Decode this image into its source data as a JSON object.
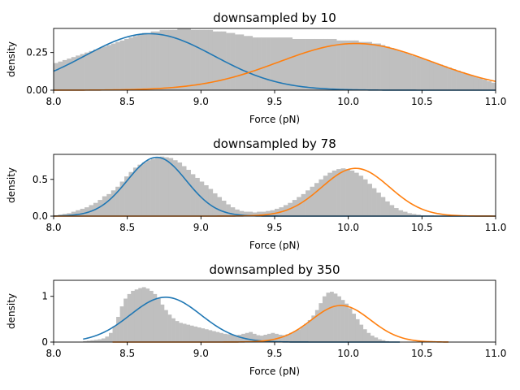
{
  "chart_data": [
    {
      "type": "bar",
      "title": "downsampled by 10",
      "xlabel": "Force (pN)",
      "ylabel": "density",
      "xlim": [
        8.0,
        11.0
      ],
      "ylim": [
        0,
        0.41
      ],
      "xticks": [
        "8.0",
        "8.5",
        "9.0",
        "9.5",
        "10.0",
        "10.5",
        "11.0"
      ],
      "yticks": [
        {
          "value": 0.0,
          "label": "0.00"
        },
        {
          "value": 0.25,
          "label": "0.25"
        }
      ],
      "histogram": {
        "color": "#bfbfbf",
        "bin_start": 8.0,
        "bin_width": 0.03,
        "values": [
          0.18,
          0.19,
          0.2,
          0.21,
          0.22,
          0.23,
          0.24,
          0.25,
          0.26,
          0.27,
          0.28,
          0.29,
          0.3,
          0.31,
          0.32,
          0.33,
          0.34,
          0.35,
          0.36,
          0.37,
          0.38,
          0.38,
          0.39,
          0.39,
          0.4,
          0.4,
          0.4,
          0.4,
          0.41,
          0.41,
          0.41,
          0.4,
          0.4,
          0.4,
          0.4,
          0.4,
          0.39,
          0.39,
          0.39,
          0.38,
          0.38,
          0.37,
          0.37,
          0.36,
          0.36,
          0.35,
          0.35,
          0.35,
          0.35,
          0.35,
          0.35,
          0.35,
          0.35,
          0.35,
          0.34,
          0.34,
          0.34,
          0.34,
          0.34,
          0.34,
          0.34,
          0.34,
          0.34,
          0.34,
          0.33,
          0.33,
          0.33,
          0.33,
          0.33,
          0.32,
          0.32,
          0.32,
          0.31,
          0.31,
          0.3,
          0.29,
          0.28,
          0.27,
          0.26,
          0.25,
          0.24,
          0.23,
          0.22,
          0.21,
          0.2,
          0.19,
          0.18,
          0.17,
          0.16,
          0.15,
          0.14,
          0.13,
          0.12,
          0.11,
          0.1,
          0.09,
          0.08,
          0.07,
          0.06,
          0.05
        ]
      },
      "series": [
        {
          "color": "#1f77b4",
          "mu": 8.65,
          "sigma": 0.44,
          "amp": 0.375,
          "x_range": [
            8.0,
            11.0
          ]
        },
        {
          "color": "#ff7f0e",
          "mu": 10.05,
          "sigma": 0.52,
          "amp": 0.31,
          "x_range": [
            8.0,
            11.0
          ]
        }
      ]
    },
    {
      "type": "bar",
      "title": "downsampled by 78",
      "xlabel": "Force (pN)",
      "ylabel": "density",
      "xlim": [
        8.0,
        11.0
      ],
      "ylim": [
        0,
        0.84
      ],
      "xticks": [
        "8.0",
        "8.5",
        "9.0",
        "9.5",
        "10.0",
        "10.5",
        "11.0"
      ],
      "yticks": [
        {
          "value": 0.0,
          "label": "0.0"
        },
        {
          "value": 0.5,
          "label": "0.5"
        }
      ],
      "histogram": {
        "color": "#bfbfbf",
        "bin_start": 8.0,
        "bin_width": 0.03,
        "values": [
          0.01,
          0.02,
          0.03,
          0.04,
          0.06,
          0.08,
          0.1,
          0.12,
          0.15,
          0.18,
          0.22,
          0.27,
          0.3,
          0.35,
          0.4,
          0.47,
          0.54,
          0.6,
          0.66,
          0.7,
          0.73,
          0.76,
          0.78,
          0.8,
          0.81,
          0.8,
          0.79,
          0.76,
          0.73,
          0.68,
          0.63,
          0.57,
          0.52,
          0.47,
          0.42,
          0.37,
          0.31,
          0.26,
          0.21,
          0.16,
          0.12,
          0.09,
          0.07,
          0.06,
          0.06,
          0.05,
          0.06,
          0.06,
          0.07,
          0.08,
          0.1,
          0.12,
          0.15,
          0.18,
          0.22,
          0.26,
          0.3,
          0.35,
          0.4,
          0.45,
          0.5,
          0.55,
          0.59,
          0.62,
          0.64,
          0.65,
          0.64,
          0.62,
          0.59,
          0.55,
          0.5,
          0.44,
          0.38,
          0.32,
          0.26,
          0.2,
          0.15,
          0.11,
          0.08,
          0.06,
          0.04,
          0.03,
          0.02,
          0.01,
          0.01,
          0.01,
          0.0,
          0.0,
          0.0,
          0.0,
          0.0,
          0.0,
          0.0,
          0.0,
          0.0,
          0.0,
          0.0,
          0.0,
          0.0,
          0.0
        ]
      },
      "series": [
        {
          "color": "#1f77b4",
          "mu": 8.7,
          "sigma": 0.2,
          "amp": 0.8,
          "x_range": [
            8.0,
            11.0
          ]
        },
        {
          "color": "#ff7f0e",
          "mu": 10.05,
          "sigma": 0.23,
          "amp": 0.65,
          "x_range": [
            8.0,
            11.0
          ]
        }
      ]
    },
    {
      "type": "bar",
      "title": "downsampled by 350",
      "xlabel": "Force (pN)",
      "ylabel": "density",
      "xlim": [
        8.0,
        11.0
      ],
      "ylim": [
        0,
        1.35
      ],
      "xticks": [
        "8.0",
        "8.5",
        "9.0",
        "9.5",
        "10.0",
        "10.5",
        "11.0"
      ],
      "yticks": [
        {
          "value": 0,
          "label": "0"
        },
        {
          "value": 1,
          "label": "1"
        }
      ],
      "histogram": {
        "color": "#bfbfbf",
        "bin_start": 8.2,
        "bin_width": 0.025,
        "values": [
          0.02,
          0.03,
          0.04,
          0.05,
          0.06,
          0.08,
          0.12,
          0.2,
          0.35,
          0.55,
          0.78,
          0.95,
          1.05,
          1.12,
          1.15,
          1.18,
          1.2,
          1.17,
          1.12,
          1.05,
          0.95,
          0.82,
          0.7,
          0.6,
          0.52,
          0.46,
          0.42,
          0.4,
          0.38,
          0.36,
          0.34,
          0.32,
          0.3,
          0.28,
          0.26,
          0.24,
          0.22,
          0.2,
          0.18,
          0.17,
          0.16,
          0.15,
          0.16,
          0.18,
          0.2,
          0.22,
          0.18,
          0.15,
          0.14,
          0.16,
          0.18,
          0.2,
          0.18,
          0.16,
          0.15,
          0.17,
          0.2,
          0.24,
          0.28,
          0.34,
          0.4,
          0.48,
          0.58,
          0.7,
          0.85,
          1.0,
          1.08,
          1.1,
          1.06,
          1.0,
          0.92,
          0.84,
          0.74,
          0.62,
          0.5,
          0.38,
          0.28,
          0.2,
          0.14,
          0.1,
          0.06,
          0.04,
          0.02,
          0.01,
          0.01
        ]
      },
      "series": [
        {
          "color": "#1f77b4",
          "mu": 8.76,
          "sigma": 0.24,
          "amp": 0.98,
          "x_range": [
            8.2,
            10.35
          ]
        },
        {
          "color": "#ff7f0e",
          "mu": 9.95,
          "sigma": 0.2,
          "amp": 0.8,
          "x_range": [
            8.4,
            10.68
          ]
        }
      ]
    }
  ]
}
